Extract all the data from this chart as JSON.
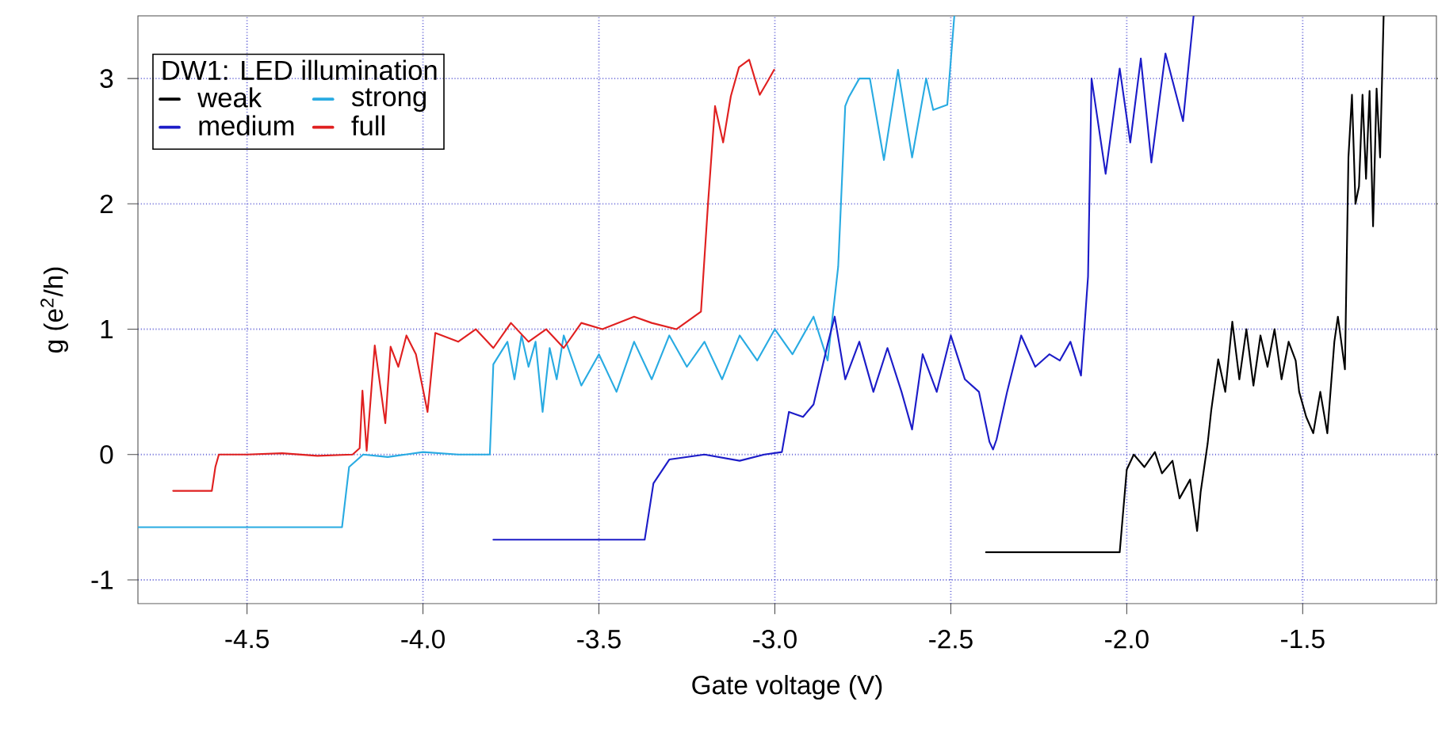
{
  "chart_data": {
    "type": "line",
    "xlabel": "Gate voltage (V)",
    "ylabel": "g (e$^{2}$/h)",
    "legend_title": "DW1: LED illumination",
    "xlim": [
      -4.81,
      -1.12
    ],
    "ylim": [
      -1.19,
      3.5
    ],
    "xticks": [
      {
        "value": -4.5,
        "label": "-4.5"
      },
      {
        "value": -4,
        "label": "-4.0"
      },
      {
        "value": -3.5,
        "label": "-3.5"
      },
      {
        "value": -3,
        "label": "-3.0"
      },
      {
        "value": -2.5,
        "label": "-2.5"
      },
      {
        "value": -2,
        "label": "-2.0"
      },
      {
        "value": -1.5,
        "label": "-1.5"
      }
    ],
    "yticks": [
      -1,
      0,
      1,
      2,
      3
    ],
    "grid": true,
    "legend": "top left",
    "series": [
      {
        "name": "weak",
        "color": "#000000",
        "x": [
          -2.4,
          -2.2,
          -2.02,
          -2.0,
          -1.98,
          -1.95,
          -1.92,
          -1.9,
          -1.87,
          -1.85,
          -1.82,
          -1.8,
          -1.79,
          -1.77,
          -1.76,
          -1.74,
          -1.72,
          -1.7,
          -1.68,
          -1.66,
          -1.64,
          -1.62,
          -1.6,
          -1.58,
          -1.56,
          -1.54,
          -1.52,
          -1.51,
          -1.49,
          -1.47,
          -1.45,
          -1.43,
          -1.41,
          -1.4,
          -1.38,
          -1.37,
          -1.36,
          -1.35,
          -1.34,
          -1.33,
          -1.32,
          -1.31,
          -1.3,
          -1.29,
          -1.28,
          -1.27
        ],
        "values": [
          -0.78,
          -0.78,
          -0.78,
          -0.12,
          0.0,
          -0.1,
          0.02,
          -0.15,
          -0.05,
          -0.35,
          -0.2,
          -0.61,
          -0.3,
          0.09,
          0.35,
          0.76,
          0.5,
          1.06,
          0.6,
          1.0,
          0.55,
          0.95,
          0.7,
          1.0,
          0.6,
          0.9,
          0.75,
          0.5,
          0.3,
          0.17,
          0.5,
          0.17,
          0.9,
          1.1,
          0.68,
          2.37,
          2.87,
          2.0,
          2.14,
          2.87,
          2.2,
          2.9,
          1.82,
          2.92,
          2.37,
          3.5
        ]
      },
      {
        "name": "strong",
        "color": "#29abe2",
        "x": [
          -4.81,
          -4.23,
          -4.21,
          -4.17,
          -4.1,
          -4.0,
          -3.9,
          -3.81,
          -3.8,
          -3.76,
          -3.74,
          -3.72,
          -3.7,
          -3.68,
          -3.66,
          -3.64,
          -3.62,
          -3.6,
          -3.55,
          -3.5,
          -3.45,
          -3.4,
          -3.35,
          -3.3,
          -3.25,
          -3.2,
          -3.15,
          -3.1,
          -3.05,
          -3.0,
          -2.95,
          -2.89,
          -2.85,
          -2.82,
          -2.8,
          -2.79,
          -2.76,
          -2.73,
          -2.69,
          -2.65,
          -2.61,
          -2.57,
          -2.55,
          -2.51,
          -2.49
        ],
        "values": [
          -0.58,
          -0.58,
          -0.1,
          0.0,
          -0.02,
          0.02,
          0.0,
          0.0,
          0.72,
          0.9,
          0.6,
          0.95,
          0.7,
          0.9,
          0.34,
          0.85,
          0.6,
          0.95,
          0.55,
          0.8,
          0.5,
          0.9,
          0.6,
          0.95,
          0.7,
          0.9,
          0.6,
          0.95,
          0.75,
          1.0,
          0.8,
          1.1,
          0.75,
          1.5,
          2.78,
          2.85,
          3.0,
          3.0,
          2.35,
          3.07,
          2.37,
          3.0,
          2.75,
          2.79,
          3.5
        ]
      },
      {
        "name": "medium",
        "color": "#1c1cc8",
        "x": [
          -3.8,
          -3.37,
          -3.345,
          -3.3,
          -3.2,
          -3.1,
          -3.03,
          -2.98,
          -2.96,
          -2.92,
          -2.89,
          -2.85,
          -2.83,
          -2.8,
          -2.76,
          -2.72,
          -2.68,
          -2.64,
          -2.61,
          -2.58,
          -2.54,
          -2.5,
          -2.46,
          -2.42,
          -2.39,
          -2.38,
          -2.37,
          -2.34,
          -2.3,
          -2.26,
          -2.22,
          -2.19,
          -2.16,
          -2.13,
          -2.11,
          -2.1,
          -2.06,
          -2.02,
          -1.99,
          -1.96,
          -1.93,
          -1.89,
          -1.84,
          -1.81
        ],
        "values": [
          -0.68,
          -0.68,
          -0.23,
          -0.04,
          0.0,
          -0.05,
          0.0,
          0.02,
          0.34,
          0.3,
          0.4,
          0.88,
          1.1,
          0.6,
          0.9,
          0.5,
          0.85,
          0.5,
          0.2,
          0.8,
          0.5,
          0.95,
          0.6,
          0.5,
          0.1,
          0.04,
          0.12,
          0.5,
          0.95,
          0.7,
          0.8,
          0.75,
          0.9,
          0.63,
          1.42,
          3.0,
          2.24,
          3.08,
          2.49,
          3.16,
          2.33,
          3.2,
          2.66,
          3.5
        ]
      },
      {
        "name": "full",
        "color": "#e02020",
        "x": [
          -4.71,
          -4.6,
          -4.59,
          -4.58,
          -4.5,
          -4.4,
          -4.3,
          -4.2,
          -4.18,
          -4.172,
          -4.16,
          -4.137,
          -4.107,
          -4.092,
          -4.07,
          -4.047,
          -4.02,
          -3.987,
          -3.965,
          -3.9,
          -3.85,
          -3.8,
          -3.75,
          -3.7,
          -3.65,
          -3.6,
          -3.55,
          -3.49,
          -3.4,
          -3.35,
          -3.28,
          -3.21,
          -3.19,
          -3.17,
          -3.147,
          -3.125,
          -3.102,
          -3.073,
          -3.043,
          -3.02,
          -3.002
        ],
        "values": [
          -0.29,
          -0.29,
          -0.1,
          0.0,
          0.0,
          0.01,
          -0.01,
          0.0,
          0.05,
          0.51,
          0.03,
          0.87,
          0.25,
          0.86,
          0.7,
          0.95,
          0.8,
          0.34,
          0.97,
          0.9,
          1.0,
          0.85,
          1.05,
          0.9,
          1.0,
          0.85,
          1.05,
          1.0,
          1.1,
          1.05,
          1.0,
          1.14,
          2.0,
          2.78,
          2.49,
          2.86,
          3.09,
          3.15,
          2.87,
          2.98,
          3.07
        ]
      }
    ]
  }
}
